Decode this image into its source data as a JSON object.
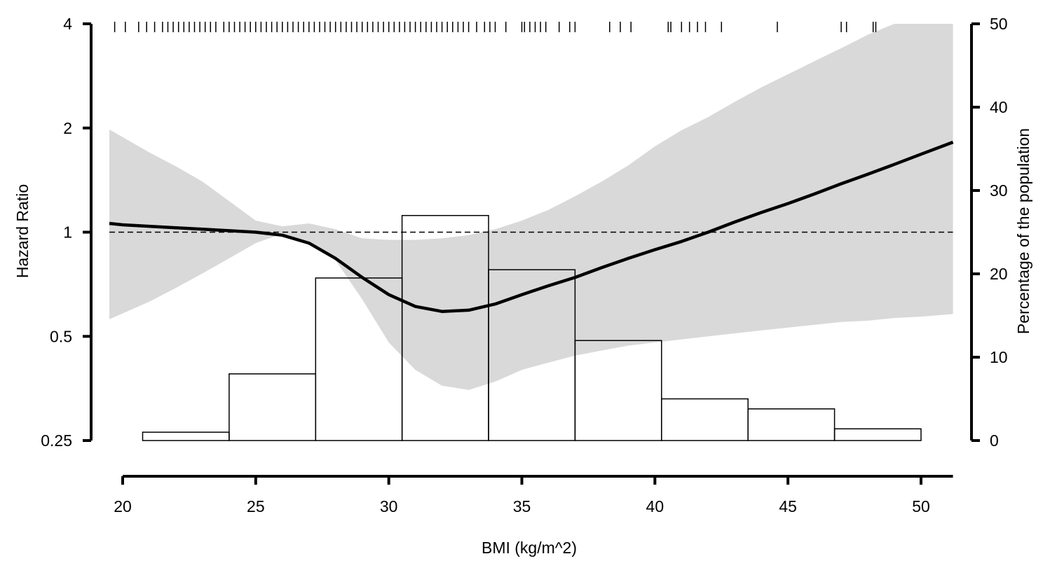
{
  "chart_data": {
    "type": "line",
    "xlabel": "BMI (kg/m^2)",
    "ylabel": "Hazard Ratio",
    "y2label": "Percentage of the population",
    "xlim": [
      19.5,
      51.2
    ],
    "xticks": [
      20,
      25,
      30,
      35,
      40,
      45,
      50
    ],
    "ylim": [
      0.25,
      4
    ],
    "yscale": "log2",
    "yticks": [
      0.25,
      0.5,
      1,
      2,
      4
    ],
    "ytick_labels": [
      "0.25",
      "0.5",
      "1",
      "2",
      "4"
    ],
    "y2lim": [
      0,
      50
    ],
    "y2ticks": [
      0,
      10,
      20,
      30,
      40,
      50
    ],
    "reference_line": 1,
    "hazard_ratio": {
      "x": [
        19.5,
        20,
        21,
        22,
        23,
        24,
        25,
        26,
        27,
        28,
        29,
        30,
        31,
        32,
        33,
        34,
        35,
        36,
        37,
        38,
        39,
        40,
        41,
        42,
        43,
        44,
        45,
        46,
        47,
        48,
        49,
        50,
        51.2
      ],
      "y": [
        1.06,
        1.05,
        1.04,
        1.03,
        1.02,
        1.01,
        1.0,
        0.98,
        0.93,
        0.84,
        0.74,
        0.66,
        0.61,
        0.59,
        0.595,
        0.62,
        0.66,
        0.7,
        0.74,
        0.79,
        0.84,
        0.89,
        0.94,
        1.0,
        1.07,
        1.14,
        1.21,
        1.29,
        1.38,
        1.47,
        1.57,
        1.68,
        1.82
      ]
    },
    "ci_upper": {
      "x": [
        19.5,
        21,
        22,
        23,
        24,
        25,
        26,
        27,
        28,
        29,
        30,
        31,
        32,
        33,
        34,
        35,
        36,
        37,
        38,
        39,
        40,
        41,
        42,
        43,
        44,
        45,
        46,
        47,
        48,
        49,
        50,
        51.2
      ],
      "y": [
        1.98,
        1.7,
        1.55,
        1.4,
        1.23,
        1.08,
        1.04,
        1.06,
        1.02,
        0.96,
        0.95,
        0.95,
        0.96,
        0.98,
        1.02,
        1.08,
        1.16,
        1.27,
        1.4,
        1.56,
        1.77,
        1.97,
        2.15,
        2.38,
        2.62,
        2.86,
        3.12,
        3.4,
        3.72,
        4.0,
        4.0,
        4.0
      ]
    },
    "ci_lower": {
      "x": [
        19.5,
        21,
        22,
        23,
        24,
        25,
        26,
        27,
        28,
        29,
        30,
        31,
        32,
        33,
        34,
        35,
        36,
        37,
        38,
        39,
        40,
        41,
        42,
        43,
        44,
        45,
        46,
        47,
        48,
        49,
        50,
        51.2
      ],
      "y": [
        0.56,
        0.63,
        0.69,
        0.76,
        0.84,
        0.93,
        0.99,
        0.94,
        0.83,
        0.64,
        0.48,
        0.4,
        0.36,
        0.35,
        0.37,
        0.4,
        0.42,
        0.44,
        0.455,
        0.47,
        0.48,
        0.49,
        0.5,
        0.51,
        0.52,
        0.53,
        0.54,
        0.55,
        0.555,
        0.565,
        0.57,
        0.58
      ]
    },
    "histogram": {
      "bin_edges": [
        20.75,
        24.0,
        27.25,
        30.5,
        33.75,
        37.0,
        40.25,
        43.5,
        46.75,
        50.0
      ],
      "percent": [
        1.0,
        8.0,
        19.5,
        27.0,
        20.5,
        12.0,
        5.0,
        3.8,
        1.4
      ]
    },
    "rug_x": [
      19.7,
      20.1,
      20.6,
      20.9,
      21.2,
      21.5,
      21.7,
      21.9,
      22.1,
      22.3,
      22.5,
      22.7,
      22.9,
      23.1,
      23.3,
      23.5,
      23.8,
      24.0,
      24.2,
      24.4,
      24.6,
      24.8,
      25.0,
      25.2,
      25.4,
      25.6,
      25.8,
      26.0,
      26.2,
      26.4,
      26.6,
      26.8,
      27.0,
      27.2,
      27.4,
      27.6,
      27.8,
      28.0,
      28.2,
      28.4,
      28.6,
      28.8,
      29.0,
      29.2,
      29.4,
      29.6,
      29.8,
      30.0,
      30.2,
      30.4,
      30.6,
      30.8,
      31.0,
      31.2,
      31.4,
      31.6,
      31.8,
      32.0,
      32.2,
      32.4,
      32.6,
      32.8,
      33.0,
      33.3,
      33.6,
      33.8,
      34.0,
      34.4,
      35.0,
      35.1,
      35.3,
      35.5,
      35.7,
      35.9,
      36.4,
      36.8,
      37.0,
      38.3,
      38.7,
      39.1,
      40.5,
      40.6,
      41.0,
      41.3,
      41.6,
      41.9,
      42.5,
      44.6,
      47.0,
      47.2,
      48.2,
      48.3
    ]
  }
}
